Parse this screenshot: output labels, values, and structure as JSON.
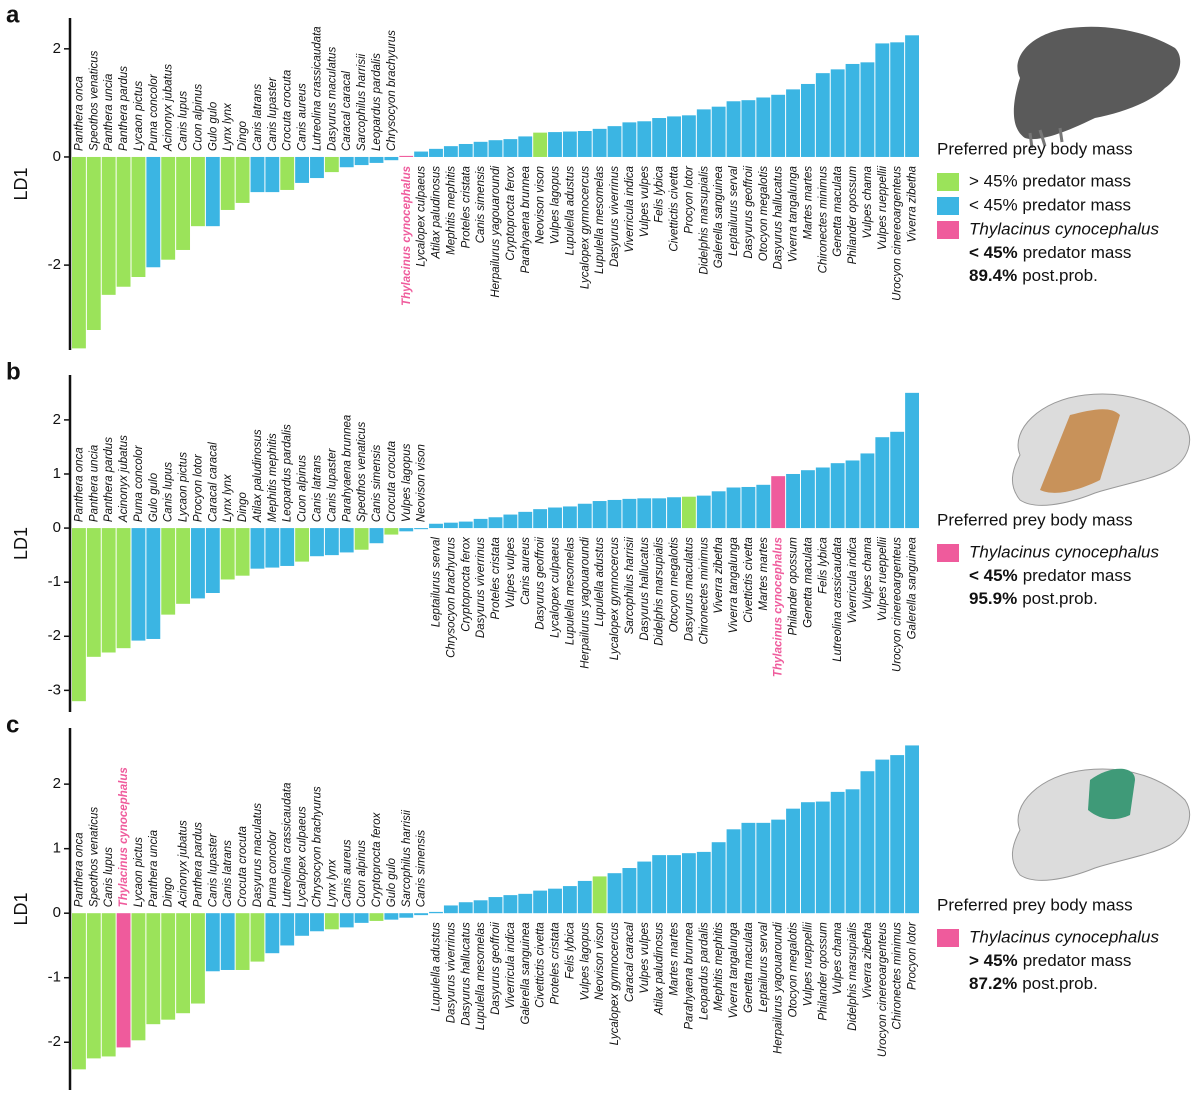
{
  "chart_data": [
    {
      "type": "bar",
      "panel": "a",
      "ylabel": "LD1",
      "categories": [
        "Panthera onca",
        "Speothos venaticus",
        "Panthera uncia",
        "Panthera pardus",
        "Lycaon pictus",
        "Puma concolor",
        "Acinonyx jubatus",
        "Canis lupus",
        "Cuon alpinus",
        "Gulo gulo",
        "Lynx lynx",
        "Dingo",
        "Canis latrans",
        "Canis lupaster",
        "Crocuta crocuta",
        "Canis aureus",
        "Lutreolina crassicaudata",
        "Dasyurus maculatus",
        "Caracal caracal",
        "Sarcophilus harrisii",
        "Leopardus pardalis",
        "Chrysocyon brachyurus",
        "Thylacinus cynocephalus",
        "Lycalopex culpaeus",
        "Atilax paludinosus",
        "Mephitis mephitis",
        "Proteles cristata",
        "Canis simensis",
        "Herpailurus yagouaroundi",
        "Cryptoprocta ferox",
        "Parahyaena brunnea",
        "Neovison vison",
        "Vulpes lagopus",
        "Lupulella adustus",
        "Lycalopex gymnocercus",
        "Lupulella mesomelas",
        "Dasyurus viverrinus",
        "Viverricula indica",
        "Vulpes vulpes",
        "Felis lybica",
        "Civettictis civetta",
        "Procyon lotor",
        "Didelphis marsupialis",
        "Galerella sanguinea",
        "Leptailurus serval",
        "Dasyurus geoffroii",
        "Otocyon megalotis",
        "Dasyurus hallucatus",
        "Viverra tangalunga",
        "Martes martes",
        "Chironectes minimus",
        "Genetta maculata",
        "Philander opossum",
        "Vulpes chama",
        "Vulpes rueppellii",
        "Urocyon cinereoargenteus",
        "Viverra zibetha"
      ],
      "values": [
        -3.54,
        -3.2,
        -2.55,
        -2.4,
        -2.22,
        -2.04,
        -1.9,
        -1.72,
        -1.28,
        -1.28,
        -0.98,
        -0.85,
        -0.65,
        -0.65,
        -0.61,
        -0.48,
        -0.39,
        -0.28,
        -0.19,
        -0.15,
        -0.11,
        -0.06,
        0.02,
        0.1,
        0.15,
        0.2,
        0.24,
        0.28,
        0.31,
        0.33,
        0.38,
        0.45,
        0.46,
        0.47,
        0.48,
        0.52,
        0.57,
        0.64,
        0.66,
        0.72,
        0.75,
        0.77,
        0.88,
        0.93,
        1.03,
        1.05,
        1.1,
        1.15,
        1.25,
        1.35,
        1.55,
        1.62,
        1.72,
        1.75,
        2.1,
        2.12,
        2.25
      ],
      "colors": [
        "#9be35a",
        "#9be35a",
        "#9be35a",
        "#9be35a",
        "#9be35a",
        "#3bb5e3",
        "#9be35a",
        "#9be35a",
        "#9be35a",
        "#3bb5e3",
        "#9be35a",
        "#9be35a",
        "#3bb5e3",
        "#3bb5e3",
        "#9be35a",
        "#3bb5e3",
        "#3bb5e3",
        "#9be35a",
        "#3bb5e3",
        "#3bb5e3",
        "#3bb5e3",
        "#3bb5e3",
        "#ef5b9c",
        "#3bb5e3",
        "#3bb5e3",
        "#3bb5e3",
        "#3bb5e3",
        "#3bb5e3",
        "#3bb5e3",
        "#3bb5e3",
        "#3bb5e3",
        "#9be35a",
        "#3bb5e3",
        "#3bb5e3",
        "#3bb5e3",
        "#3bb5e3",
        "#3bb5e3",
        "#3bb5e3",
        "#3bb5e3",
        "#3bb5e3",
        "#3bb5e3",
        "#3bb5e3",
        "#3bb5e3",
        "#3bb5e3",
        "#3bb5e3",
        "#3bb5e3",
        "#3bb5e3",
        "#3bb5e3",
        "#3bb5e3",
        "#3bb5e3",
        "#3bb5e3",
        "#3bb5e3",
        "#3bb5e3",
        "#3bb5e3",
        "#3bb5e3",
        "#3bb5e3",
        "#3bb5e3"
      ],
      "ylim": [
        -3.57,
        2.57
      ],
      "yticks": [
        -2,
        0,
        2
      ],
      "legend": {
        "title": "Preferred prey body mass",
        "entries": [
          {
            "label": "> 45% predator mass",
            "color": "#9be35a"
          },
          {
            "label": "< 45% predator mass",
            "color": "#3bb5e3"
          }
        ],
        "species": "Thylacinus cynocephalus",
        "species_color": "#ef5b9c",
        "class": "< 45%",
        "class_text": "predator mass",
        "prob": "89.4%",
        "prob_text": "post.prob."
      }
    },
    {
      "type": "bar",
      "panel": "b",
      "ylabel": "LD1",
      "categories": [
        "Panthera onca",
        "Panthera uncia",
        "Panthera pardus",
        "Acinonyx jubatus",
        "Puma concolor",
        "Gulo gulo",
        "Canis lupus",
        "Lycaon pictus",
        "Procyon lotor",
        "Caracal caracal",
        "Lynx lynx",
        "Dingo",
        "Atilax paludinosus",
        "Mephitis mephitis",
        "Leopardus pardalis",
        "Cuon alpinus",
        "Canis latrans",
        "Canis lupaster",
        "Parahyaena brunnea",
        "Speothos venaticus",
        "Canis simensis",
        "Crocuta crocuta",
        "Vulpes lagopus",
        "Neovison vison",
        "Leptailurus serval",
        "Chrysocyon brachyurus",
        "Cryptoprocta ferox",
        "Dasyurus viverrinus",
        "Proteles cristata",
        "Vulpes vulpes",
        "Canis aureus",
        "Dasyurus geoffroii",
        "Lycalopex culpaeus",
        "Lupulella mesomelas",
        "Herpailurus yagouaroundi",
        "Lupulella adustus",
        "Lycalopex gymnocercus",
        "Sarcophilus harrisii",
        "Dasyurus hallucatus",
        "Didelphis marsupialis",
        "Otocyon megalotis",
        "Dasyurus maculatus",
        "Chironectes minimus",
        "Viverra zibetha",
        "Viverra tangalunga",
        "Civettictis civetta",
        "Martes martes",
        "Thylacinus cynocephalus",
        "Philander opossum",
        "Genetta maculata",
        "Felis lybica",
        "Lutreolina crassicaudata",
        "Viverricula indica",
        "Vulpes chama",
        "Vulpes rueppellii",
        "Urocyon cinereoargenteus",
        "Galerella sanguinea"
      ],
      "values": [
        -3.2,
        -2.38,
        -2.3,
        -2.22,
        -2.08,
        -2.05,
        -1.6,
        -1.4,
        -1.3,
        -1.2,
        -0.95,
        -0.88,
        -0.75,
        -0.73,
        -0.7,
        -0.62,
        -0.52,
        -0.5,
        -0.45,
        -0.4,
        -0.28,
        -0.12,
        -0.06,
        -0.02,
        0.08,
        0.1,
        0.12,
        0.17,
        0.2,
        0.25,
        0.3,
        0.35,
        0.38,
        0.4,
        0.45,
        0.5,
        0.52,
        0.54,
        0.55,
        0.55,
        0.57,
        0.58,
        0.6,
        0.68,
        0.75,
        0.76,
        0.8,
        0.96,
        1.0,
        1.07,
        1.12,
        1.2,
        1.25,
        1.38,
        1.68,
        1.78,
        2.5
      ],
      "colors": [
        "#9be35a",
        "#9be35a",
        "#9be35a",
        "#9be35a",
        "#3bb5e3",
        "#3bb5e3",
        "#9be35a",
        "#9be35a",
        "#3bb5e3",
        "#3bb5e3",
        "#9be35a",
        "#9be35a",
        "#3bb5e3",
        "#3bb5e3",
        "#3bb5e3",
        "#9be35a",
        "#3bb5e3",
        "#3bb5e3",
        "#3bb5e3",
        "#9be35a",
        "#3bb5e3",
        "#9be35a",
        "#3bb5e3",
        "#3bb5e3",
        "#3bb5e3",
        "#3bb5e3",
        "#3bb5e3",
        "#3bb5e3",
        "#3bb5e3",
        "#3bb5e3",
        "#3bb5e3",
        "#3bb5e3",
        "#3bb5e3",
        "#3bb5e3",
        "#3bb5e3",
        "#3bb5e3",
        "#3bb5e3",
        "#3bb5e3",
        "#3bb5e3",
        "#3bb5e3",
        "#3bb5e3",
        "#9be35a",
        "#3bb5e3",
        "#3bb5e3",
        "#3bb5e3",
        "#3bb5e3",
        "#3bb5e3",
        "#ef5b9c",
        "#3bb5e3",
        "#3bb5e3",
        "#3bb5e3",
        "#3bb5e3",
        "#3bb5e3",
        "#3bb5e3",
        "#3bb5e3",
        "#3bb5e3",
        "#3bb5e3"
      ],
      "ylim": [
        -3.4,
        2.83
      ],
      "yticks": [
        -3,
        -2,
        -1,
        0,
        1,
        2
      ],
      "legend": {
        "title": "Preferred prey body mass",
        "species": "Thylacinus cynocephalus",
        "species_color": "#ef5b9c",
        "class": "< 45%",
        "class_text": "predator mass",
        "prob": "95.9%",
        "prob_text": "post.prob."
      }
    },
    {
      "type": "bar",
      "panel": "c",
      "ylabel": "LD1",
      "categories": [
        "Panthera onca",
        "Speothos venaticus",
        "Canis lupus",
        "Thylacinus cynocephalus",
        "Lycaon pictus",
        "Panthera uncia",
        "Dingo",
        "Acinonyx jubatus",
        "Panthera pardus",
        "Canis lupaster",
        "Canis latrans",
        "Crocuta crocuta",
        "Dasyurus maculatus",
        "Puma concolor",
        "Lutreolina crassicaudata",
        "Lycalopex culpaeus",
        "Chrysocyon brachyurus",
        "Lynx lynx",
        "Canis aureus",
        "Cuon alpinus",
        "Cryptoprocta ferox",
        "Gulo gulo",
        "Sarcophilus harrisii",
        "Canis simensis",
        "Lupulella adustus",
        "Dasyurus viverrinus",
        "Dasyurus hallucatus",
        "Lupulella mesomelas",
        "Dasyurus geoffroii",
        "Viverricula indica",
        "Galerella sanguinea",
        "Civettictis civetta",
        "Proteles cristata",
        "Felis lybica",
        "Vulpes lagopus",
        "Neovison vison",
        "Lycalopex gymnocercus",
        "Caracal caracal",
        "Vulpes vulpes",
        "Atilax paludinosus",
        "Martes martes",
        "Parahyaena brunnea",
        "Leopardus pardalis",
        "Mephitis mephitis",
        "Viverra tangalunga",
        "Genetta maculata",
        "Leptailurus serval",
        "Herpailurus yagouaroundi",
        "Otocyon megalotis",
        "Vulpes rueppellii",
        "Philander opossum",
        "Vulpes chama",
        "Didelphis marsupialis",
        "Viverra zibetha",
        "Urocyon cinereoargenteus",
        "Chironectes minimus",
        "Procyon lotor"
      ],
      "values": [
        -2.42,
        -2.25,
        -2.22,
        -2.08,
        -1.97,
        -1.72,
        -1.65,
        -1.55,
        -1.4,
        -0.9,
        -0.88,
        -0.88,
        -0.75,
        -0.62,
        -0.5,
        -0.35,
        -0.28,
        -0.25,
        -0.22,
        -0.15,
        -0.12,
        -0.1,
        -0.07,
        -0.03,
        0.02,
        0.12,
        0.17,
        0.2,
        0.25,
        0.28,
        0.3,
        0.35,
        0.38,
        0.42,
        0.5,
        0.57,
        0.62,
        0.7,
        0.8,
        0.9,
        0.9,
        0.93,
        0.95,
        1.1,
        1.3,
        1.4,
        1.4,
        1.45,
        1.62,
        1.72,
        1.73,
        1.88,
        1.92,
        2.2,
        2.38,
        2.45,
        2.6
      ],
      "colors": [
        "#9be35a",
        "#9be35a",
        "#9be35a",
        "#ef5b9c",
        "#9be35a",
        "#9be35a",
        "#9be35a",
        "#9be35a",
        "#9be35a",
        "#3bb5e3",
        "#3bb5e3",
        "#9be35a",
        "#9be35a",
        "#3bb5e3",
        "#3bb5e3",
        "#3bb5e3",
        "#3bb5e3",
        "#9be35a",
        "#3bb5e3",
        "#3bb5e3",
        "#9be35a",
        "#3bb5e3",
        "#3bb5e3",
        "#3bb5e3",
        "#3bb5e3",
        "#3bb5e3",
        "#3bb5e3",
        "#3bb5e3",
        "#3bb5e3",
        "#3bb5e3",
        "#3bb5e3",
        "#3bb5e3",
        "#3bb5e3",
        "#3bb5e3",
        "#3bb5e3",
        "#9be35a",
        "#3bb5e3",
        "#3bb5e3",
        "#3bb5e3",
        "#3bb5e3",
        "#3bb5e3",
        "#3bb5e3",
        "#3bb5e3",
        "#3bb5e3",
        "#3bb5e3",
        "#3bb5e3",
        "#3bb5e3",
        "#3bb5e3",
        "#3bb5e3",
        "#3bb5e3",
        "#3bb5e3",
        "#3bb5e3",
        "#3bb5e3",
        "#3bb5e3",
        "#3bb5e3",
        "#3bb5e3",
        "#3bb5e3"
      ],
      "ylim": [
        -2.74,
        2.87
      ],
      "yticks": [
        -2,
        -1,
        0,
        1,
        2
      ],
      "legend": {
        "title": "Preferred prey body mass",
        "species": "Thylacinus cynocephalus",
        "species_color": "#ef5b9c",
        "class": "> 45%",
        "class_text": "predator mass",
        "prob": "87.2%",
        "prob_text": "post.prob."
      }
    }
  ]
}
